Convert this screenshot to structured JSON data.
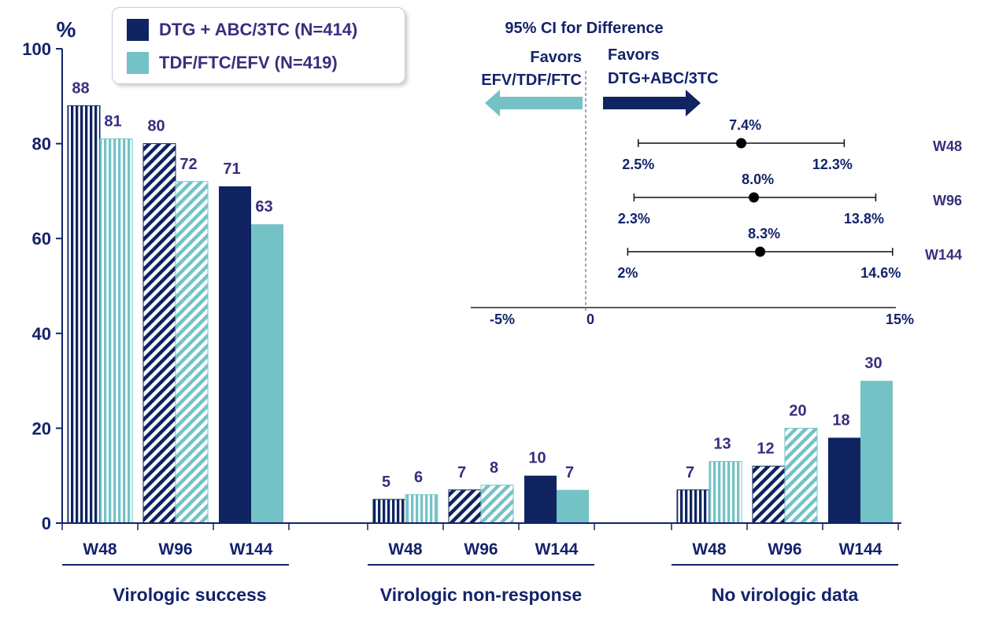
{
  "colors": {
    "dtg": "#0f2461",
    "tdf": "#74c2c6",
    "text": "#36307f",
    "axis": "#13236b"
  },
  "legend": {
    "dtg_label": "DTG + ABC/3TC (N=414)",
    "tdf_label": "TDF/FTC/EFV (N=419)"
  },
  "chart_data": [
    {
      "type": "bar",
      "ylabel": "%",
      "ylim": [
        0,
        100
      ],
      "yticks": [
        0,
        20,
        40,
        60,
        80,
        100
      ],
      "groups": [
        {
          "label": "Virologic success",
          "categories": [
            "W48",
            "W96",
            "W144"
          ]
        },
        {
          "label": "Virologic non-response",
          "categories": [
            "W48",
            "W96",
            "W144"
          ]
        },
        {
          "label": "No virologic data",
          "categories": [
            "W48",
            "W96",
            "W144"
          ]
        }
      ],
      "series": [
        {
          "name": "DTG + ABC/3TC (N=414)",
          "values": [
            88,
            80,
            71,
            5,
            7,
            10,
            7,
            12,
            18
          ]
        },
        {
          "name": "TDF/FTC/EFV (N=419)",
          "values": [
            81,
            72,
            63,
            6,
            8,
            7,
            13,
            20,
            30
          ]
        }
      ],
      "fill_style_by_timepoint": {
        "W48": "vertical-stripes",
        "W96": "diagonal-stripes",
        "W144": "solid"
      },
      "legend_position": "top-left"
    },
    {
      "type": "forest",
      "title": "95% CI for Difference",
      "favors_left": [
        "Favors",
        "EFV/TDF/FTC"
      ],
      "favors_right": [
        "Favors",
        "DTG+ABC/3TC"
      ],
      "x_ticks": [
        "-5%",
        "0",
        "15%"
      ],
      "xlim": [
        -5,
        15
      ],
      "rows": [
        {
          "label": "W48",
          "estimate": 7.4,
          "lower": 2.5,
          "upper": 12.3,
          "estimate_label": "7.4%",
          "lower_label": "2.5%",
          "upper_label": "12.3%"
        },
        {
          "label": "W96",
          "estimate": 8.0,
          "lower": 2.3,
          "upper": 13.8,
          "estimate_label": "8.0%",
          "lower_label": "2.3%",
          "upper_label": "13.8%"
        },
        {
          "label": "W144",
          "estimate": 8.3,
          "lower": 2.0,
          "upper": 14.6,
          "estimate_label": "8.3%",
          "lower_label": "2%",
          "upper_label": "14.6%"
        }
      ]
    }
  ]
}
